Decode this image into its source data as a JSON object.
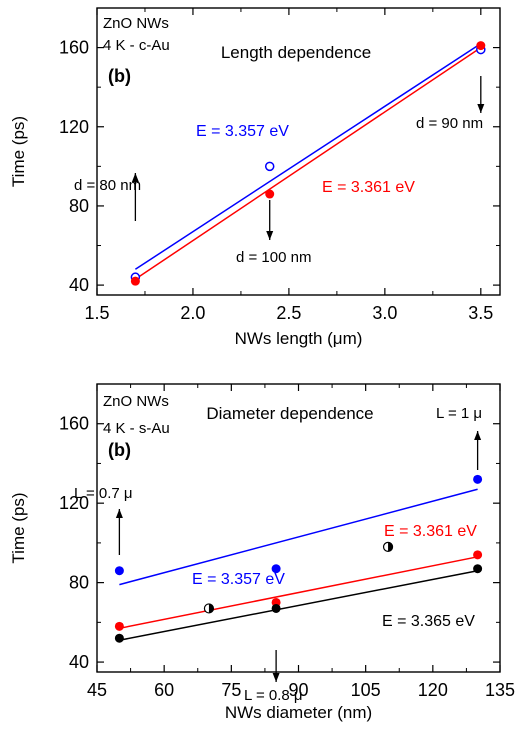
{
  "chart_data": [
    {
      "type": "scatter",
      "panel_label": "(b)",
      "title": "Length dependence",
      "sample_label": [
        "ZnO NWs",
        "4 K - c-Au"
      ],
      "xlabel": "NWs length (μm)",
      "ylabel": "Time (ps)",
      "xlim": [
        1.5,
        3.6
      ],
      "ylim": [
        35,
        180
      ],
      "xticks": [
        1.5,
        2.0,
        2.5,
        3.0,
        3.5
      ],
      "xtick_labels": [
        "1.5",
        "2.0",
        "2.5",
        "3.0",
        "3.5"
      ],
      "yticks": [
        40,
        80,
        120,
        160
      ],
      "ytick_labels": [
        "40",
        "80",
        "120",
        "160"
      ],
      "series": [
        {
          "name": "E = 3.357 eV",
          "color": "#0000ff",
          "marker": "open-circle",
          "x": [
            1.7,
            2.4,
            3.5
          ],
          "y": [
            44,
            100,
            159
          ],
          "fit_line": {
            "x": [
              1.7,
              3.5
            ],
            "y": [
              48,
              162
            ]
          }
        },
        {
          "name": "E = 3.361 eV",
          "color": "#ff0000",
          "marker": "filled-circle",
          "x": [
            1.7,
            2.4,
            3.5
          ],
          "y": [
            42,
            86,
            161
          ],
          "fit_line": {
            "x": [
              1.7,
              3.5
            ],
            "y": [
              43,
              160
            ]
          }
        }
      ],
      "annotations": [
        {
          "text": "d = 80 nm",
          "arrow": "up",
          "x": 1.7,
          "y": 44
        },
        {
          "text": "d = 100 nm",
          "arrow": "down",
          "x": 2.4,
          "y": 86
        },
        {
          "text": "d = 90 nm",
          "arrow": "down",
          "x": 3.5,
          "y": 159
        }
      ]
    },
    {
      "type": "scatter",
      "panel_label": "(b)",
      "title": "Diameter dependence",
      "sample_label": [
        "ZnO NWs",
        "4 K - s-Au"
      ],
      "xlabel": "NWs diameter (nm)",
      "ylabel": "Time (ps)",
      "xlim": [
        45,
        135
      ],
      "ylim": [
        35,
        180
      ],
      "xticks": [
        45,
        60,
        75,
        90,
        105,
        120,
        135
      ],
      "xtick_labels": [
        "45",
        "60",
        "75",
        "90",
        "105",
        "120",
        "135"
      ],
      "yticks": [
        40,
        80,
        120,
        160
      ],
      "ytick_labels": [
        "40",
        "80",
        "120",
        "160"
      ],
      "series": [
        {
          "name": "E = 3.357 eV",
          "color": "#0000ff",
          "marker": "filled-circle",
          "x": [
            50,
            85,
            130
          ],
          "y": [
            86,
            87,
            132
          ],
          "fit_line": {
            "x": [
              50,
              130
            ],
            "y": [
              79,
              127
            ]
          }
        },
        {
          "name": "E = 3.361 eV",
          "color": "#ff0000",
          "marker": "filled-circle",
          "x": [
            50,
            85,
            130
          ],
          "y": [
            58,
            70,
            94
          ],
          "fit_line": {
            "x": [
              50,
              130
            ],
            "y": [
              57,
              93
            ]
          }
        },
        {
          "name": "E = 3.365 eV",
          "color": "#000000",
          "marker": "filled-circle",
          "x": [
            50,
            85,
            130
          ],
          "y": [
            52,
            67,
            87
          ],
          "fit_line": {
            "x": [
              50,
              130
            ],
            "y": [
              51,
              86
            ]
          }
        },
        {
          "name": "",
          "color": "#000000",
          "marker": "half-filled-circle",
          "x": [
            70,
            110
          ],
          "y": [
            67,
            98
          ]
        }
      ],
      "annotations": [
        {
          "text": "L = 0.7 μ",
          "arrow": "up",
          "x": 50,
          "y": 86
        },
        {
          "text": "L = 0.8 μ",
          "arrow": "down",
          "x": 85,
          "y": 67
        },
        {
          "text": "L = 1 μ",
          "arrow": "up",
          "x": 130,
          "y": 132
        }
      ]
    }
  ]
}
